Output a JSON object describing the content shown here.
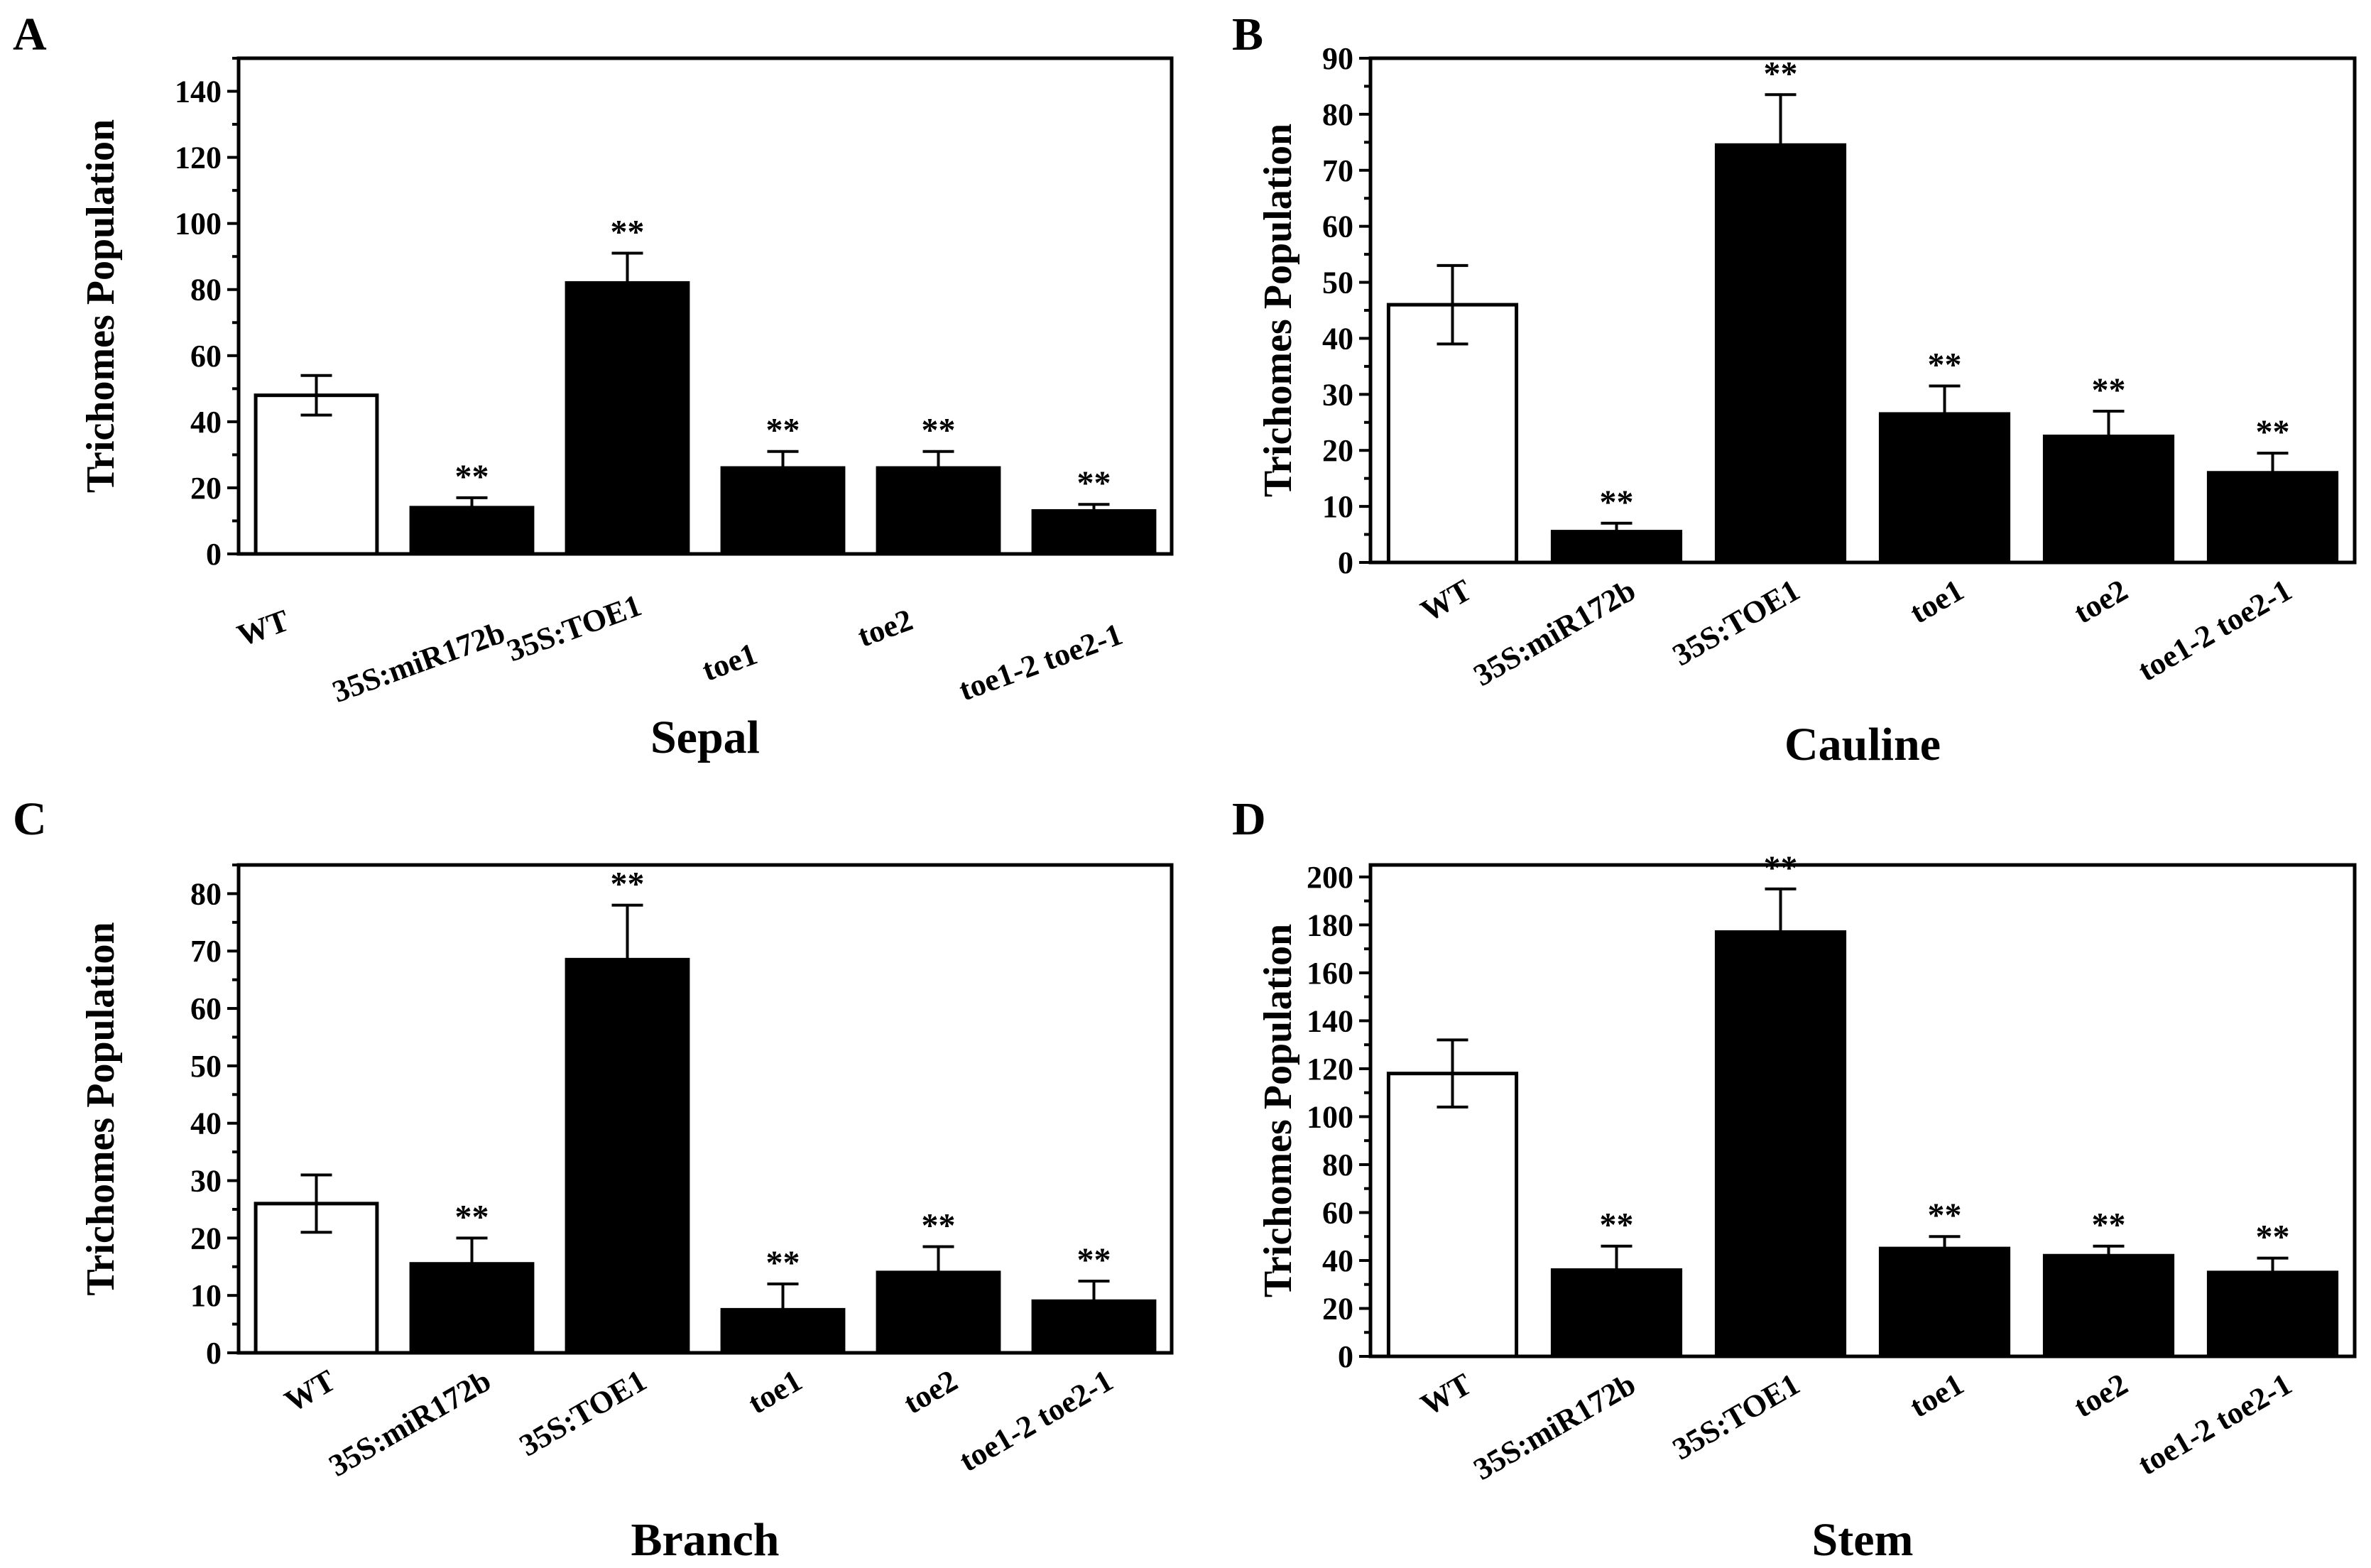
{
  "colors": {
    "control": "#ffffff",
    "treatment": "#000000",
    "axis": "#000000"
  },
  "chart_data": [
    {
      "panel": "A",
      "type": "bar",
      "title": "",
      "xlabel": "Sepal",
      "ylabel": "Trichomes Population",
      "categories": [
        "WT",
        "35S:miR172b",
        "35S:TOE1",
        "toe1",
        "toe2",
        "toe1-2 toe2-1"
      ],
      "values": [
        48,
        14,
        82,
        26,
        26,
        13
      ],
      "errors": [
        6,
        3,
        9,
        5,
        5,
        2
      ],
      "significance": [
        "",
        "**",
        "**",
        "**",
        "**",
        "**"
      ],
      "ylim": [
        0,
        150
      ],
      "yticks": [
        0,
        20,
        40,
        60,
        80,
        100,
        120,
        140
      ],
      "ytick_labels": [
        "0",
        "20",
        "40",
        "60",
        "80",
        "100",
        "120",
        "140"
      ],
      "tick_layout": "staggered"
    },
    {
      "panel": "B",
      "type": "bar",
      "title": "",
      "xlabel": "Cauline",
      "ylabel": "Trichomes Population",
      "categories": [
        "WT",
        "35S:miR172b",
        "35S:TOE1",
        "toe1",
        "toe2",
        "toe1-2 toe2-1"
      ],
      "values": [
        46,
        5.5,
        74.5,
        26.5,
        22.5,
        16
      ],
      "errors": [
        7,
        1.5,
        9,
        5,
        4.5,
        3.5
      ],
      "significance": [
        "",
        "**",
        "**",
        "**",
        "**",
        "**"
      ],
      "ylim": [
        0,
        90
      ],
      "yticks": [
        0,
        10,
        20,
        30,
        40,
        50,
        60,
        70,
        80,
        90
      ],
      "ytick_labels": [
        "0",
        "10",
        "20",
        "30",
        "40",
        "50",
        "60",
        "70",
        "80",
        "90"
      ],
      "tick_layout": "rotated"
    },
    {
      "panel": "C",
      "type": "bar",
      "title": "",
      "xlabel": "Branch",
      "ylabel": "Trichomes Population",
      "categories": [
        "WT",
        "35S:miR172b",
        "35S:TOE1",
        "toe1",
        "toe2",
        "toe1-2 toe2-1"
      ],
      "values": [
        26,
        15.5,
        68.5,
        7.5,
        14,
        9
      ],
      "errors": [
        5,
        4.5,
        9.5,
        4.5,
        4.5,
        3.5
      ],
      "significance": [
        "",
        "**",
        "**",
        "**",
        "**",
        "**"
      ],
      "ylim": [
        0,
        85
      ],
      "yticks": [
        0,
        10,
        20,
        30,
        40,
        50,
        60,
        70,
        80
      ],
      "ytick_labels": [
        "0",
        "10",
        "20",
        "30",
        "40",
        "50",
        "60",
        "70",
        "80"
      ],
      "tick_layout": "rotated"
    },
    {
      "panel": "D",
      "type": "bar",
      "title": "",
      "xlabel": "Stem",
      "ylabel": "Trichomes Population",
      "categories": [
        "WT",
        "35S:miR172b",
        "35S:TOE1",
        "toe1",
        "toe2",
        "toe1-2 toe2-1"
      ],
      "values": [
        118,
        36,
        177,
        45,
        42,
        35
      ],
      "errors": [
        14,
        10,
        18,
        5,
        4,
        6
      ],
      "significance": [
        "",
        "**",
        "**",
        "**",
        "**",
        "**"
      ],
      "ylim": [
        0,
        205
      ],
      "yticks": [
        0,
        20,
        40,
        60,
        80,
        100,
        120,
        140,
        160,
        180,
        200
      ],
      "ytick_labels": [
        "0",
        "20",
        "40",
        "60",
        "80",
        "100",
        "120",
        "140",
        "160",
        "180",
        "200"
      ],
      "tick_layout": "rotated"
    }
  ]
}
